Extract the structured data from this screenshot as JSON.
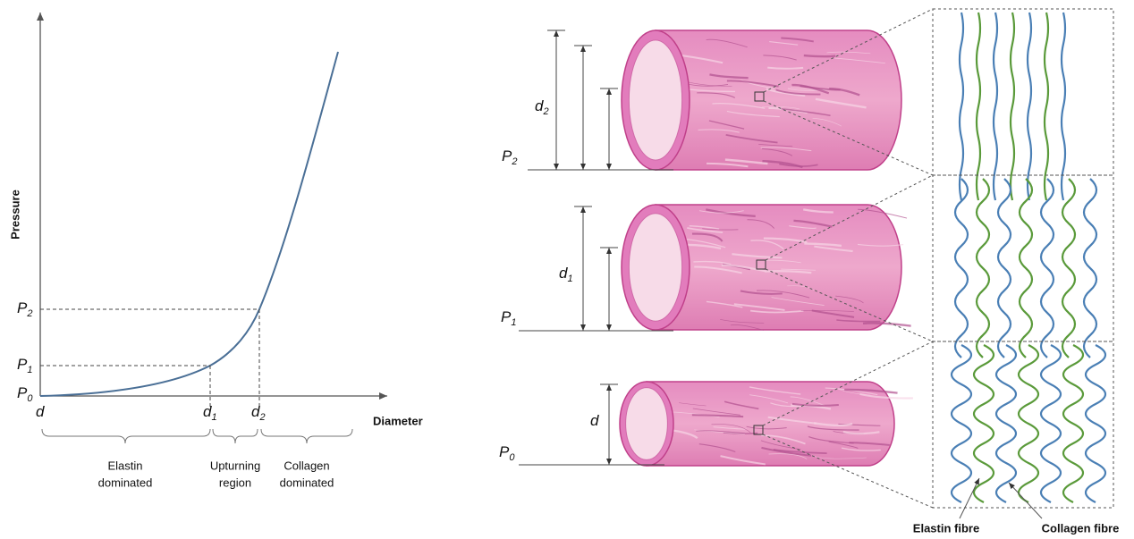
{
  "graph": {
    "y_axis_label": "Pressure",
    "x_axis_label": "Diameter",
    "y_ticks": [
      {
        "symbol": "P",
        "subscript": "2"
      },
      {
        "symbol": "P",
        "subscript": "1"
      },
      {
        "symbol": "P",
        "subscript": "0"
      }
    ],
    "x_ticks": [
      {
        "symbol": "d"
      },
      {
        "symbol": "d",
        "subscript": "1"
      },
      {
        "symbol": "d",
        "subscript": "2"
      }
    ],
    "regions": [
      {
        "lines": [
          "Elastin",
          "dominated"
        ]
      },
      {
        "lines": [
          "Upturning",
          "region"
        ]
      },
      {
        "lines": [
          "Collagen",
          "dominated"
        ]
      }
    ]
  },
  "vessels": [
    {
      "diameter": {
        "symbol": "d",
        "subscript": "2"
      },
      "pressure": {
        "symbol": "P",
        "subscript": "2"
      }
    },
    {
      "diameter": {
        "symbol": "d",
        "subscript": "1"
      },
      "pressure": {
        "symbol": "P",
        "subscript": "1"
      }
    },
    {
      "diameter": {
        "symbol": "d"
      },
      "pressure": {
        "symbol": "P",
        "subscript": "0"
      }
    }
  ],
  "fibre_labels": [
    "Elastin fibre",
    "Collagen fibre"
  ]
}
